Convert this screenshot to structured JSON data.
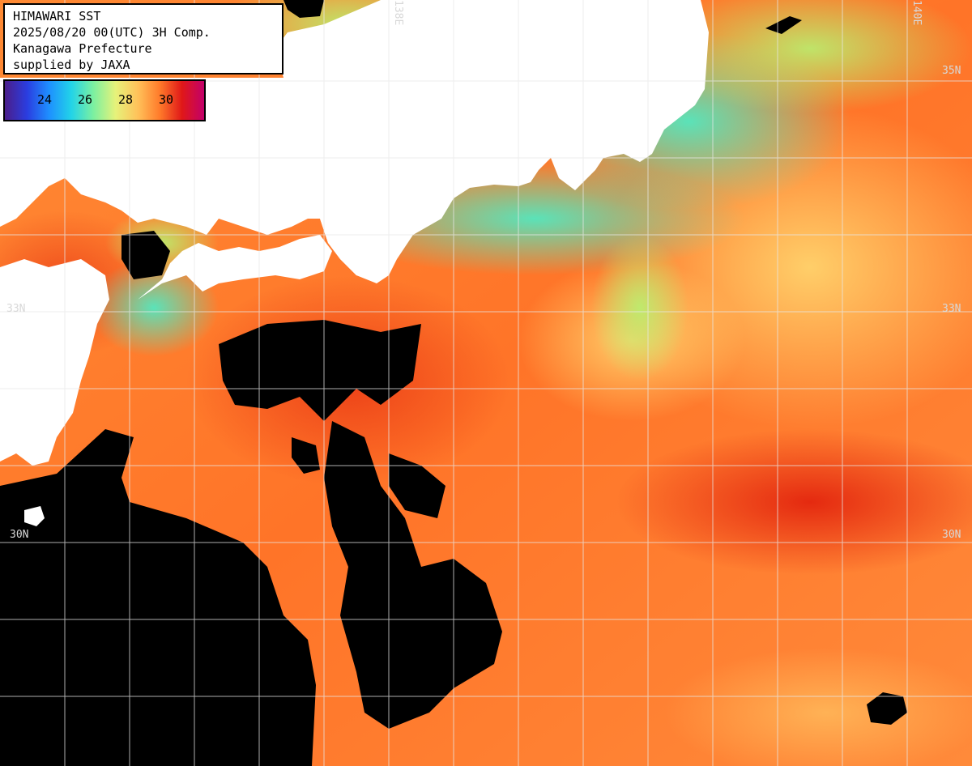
{
  "info": {
    "title": "HIMAWARI SST",
    "datetime": "2025/08/20 00(UTC) 3H Comp.",
    "region": "Kanagawa Prefecture",
    "credit": "supplied by JAXA"
  },
  "colorbar": {
    "labels": [
      "24",
      "26",
      "28",
      "30"
    ],
    "colors": [
      "#4b1e8a",
      "#2a3de0",
      "#1e90ff",
      "#22d3e8",
      "#7cf0a0",
      "#e6f27a",
      "#ffc25a",
      "#ff7a2a",
      "#e01818",
      "#c2006a"
    ]
  },
  "grid": {
    "lat_labels": [
      "35N",
      "33N",
      "30N"
    ],
    "lon_labels": [
      "138E",
      "140E"
    ]
  },
  "colors": {
    "land": "#ffffff",
    "no_data": "#000000",
    "sea_warm": "#ff7a2a",
    "sea_hot": "#e52a10",
    "sea_mild": "#ffc25a",
    "sea_cool": "#5fe7b0"
  }
}
